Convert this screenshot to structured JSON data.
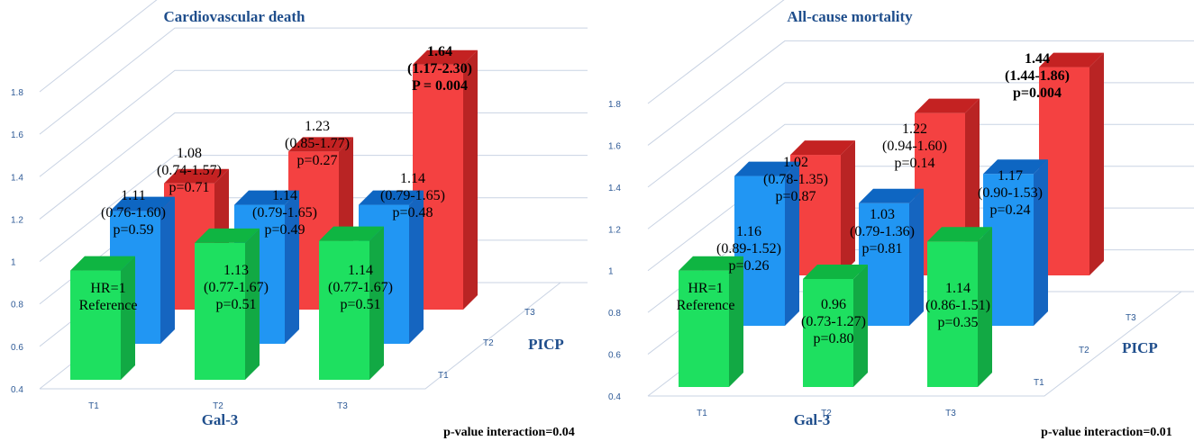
{
  "colors": {
    "gridline": "#c9d3e3",
    "axis_text": "#2e5a96",
    "title_text": "#1f4e8c",
    "label_text": "#000000",
    "T1": {
      "front": "#1ee060",
      "side": "#12a944",
      "top": "#0fb542"
    },
    "T2": {
      "front": "#2196f3",
      "side": "#1565c0",
      "top": "#0e66c2"
    },
    "T3": {
      "front": "#f44141",
      "side": "#b92424",
      "top": "#c42222"
    }
  },
  "chart_data": [
    {
      "type": "bar3d",
      "title": "Cardiovascular death",
      "xlabel": "Gal-3",
      "zlabel": "PICP",
      "x_categories": [
        "T1",
        "T2",
        "T3"
      ],
      "z_categories": [
        "T1",
        "T2",
        "T3"
      ],
      "y_ticks": [
        "0.4",
        "0.6",
        "0.8",
        "1",
        "1.2",
        "1.4",
        "1.6",
        "1.8"
      ],
      "ylim": [
        0.4,
        1.8
      ],
      "series": [
        {
          "z": "T1",
          "values": [
            1.0,
            1.13,
            1.14
          ],
          "labels": [
            [
              "HR=1",
              "Reference"
            ],
            [
              "1.13",
              "(0.77-1.67)",
              "p=0.51"
            ],
            [
              "1.14",
              "(0.77-1.67)",
              "p=0.51"
            ]
          ]
        },
        {
          "z": "T2",
          "values": [
            1.11,
            1.14,
            1.14
          ],
          "labels": [
            [
              "1.11",
              "(0.76-1.60)",
              "p=0.59"
            ],
            [
              "1.14",
              "(0.79-1.65)",
              "p=0.49"
            ],
            [
              "1.14",
              "(0.79-1.65)",
              "p=0.48"
            ]
          ]
        },
        {
          "z": "T3",
          "values": [
            1.08,
            1.23,
            1.64
          ],
          "labels": [
            [
              "1.08",
              "(0.74-1.57)",
              "p=0.71"
            ],
            [
              "1.23",
              "(0.85-1.77)",
              "p=0.27"
            ],
            [
              "1.64",
              "(1.17-2.30)",
              "P = 0.004"
            ]
          ],
          "bold_last": true
        }
      ],
      "footnote": "p-value interaction=0.04"
    },
    {
      "type": "bar3d",
      "title": "All-cause mortality",
      "xlabel": "Gal-3",
      "zlabel": "PICP",
      "x_categories": [
        "T1",
        "T2",
        "T3"
      ],
      "z_categories": [
        "T1",
        "T2",
        "T3"
      ],
      "y_ticks": [
        "0.4",
        "0.6",
        "0.8",
        "1",
        "1.2",
        "1.4",
        "1.6",
        "1.8"
      ],
      "ylim": [
        0.4,
        1.8
      ],
      "series": [
        {
          "z": "T1",
          "values": [
            1.0,
            0.96,
            1.14
          ],
          "labels": [
            [
              "HR=1",
              "Reference"
            ],
            [
              "0.96",
              "(0.73-1.27)",
              "p=0.80"
            ],
            [
              "1.14",
              "(0.86-1.51)",
              "p=0.35"
            ]
          ]
        },
        {
          "z": "T2",
          "values": [
            1.16,
            1.03,
            1.17
          ],
          "labels": [
            [
              "1.16",
              "(0.89-1.52)",
              "p=0.26"
            ],
            [
              "1.03",
              "(0.79-1.36)",
              "p=0.81"
            ],
            [
              "1.17",
              "(0.90-1.53)",
              "p=0.24"
            ]
          ]
        },
        {
          "z": "T3",
          "values": [
            1.02,
            1.22,
            1.44
          ],
          "labels": [
            [
              "1.02",
              "(0.78-1.35)",
              "p=0.87"
            ],
            [
              "1.22",
              "(0.94-1.60)",
              "p=0.14"
            ],
            [
              "1.44",
              "(1.44-1.86)",
              "p=0.004"
            ]
          ],
          "bold_last": true
        }
      ],
      "footnote": "p-value interaction=0.01"
    }
  ]
}
